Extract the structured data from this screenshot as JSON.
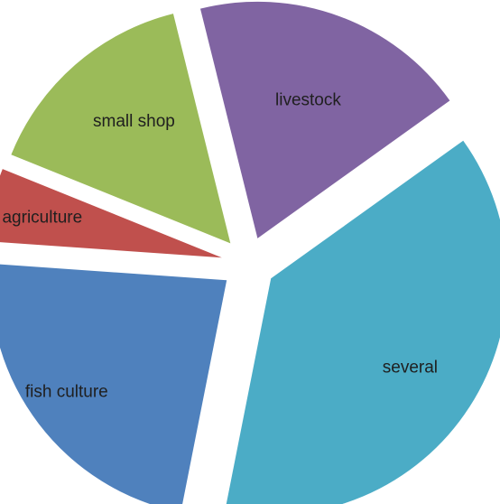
{
  "chart_data": {
    "type": "pie",
    "exploded": true,
    "categories": [
      "livestock",
      "several",
      "fish culture",
      "agriculture",
      "small shop"
    ],
    "values": [
      19,
      38,
      23,
      5,
      15
    ],
    "colors": [
      "#8064A2",
      "#4BACC6",
      "#4F81BD",
      "#C0504D",
      "#9BBB59"
    ],
    "legend": "none",
    "title": ""
  }
}
